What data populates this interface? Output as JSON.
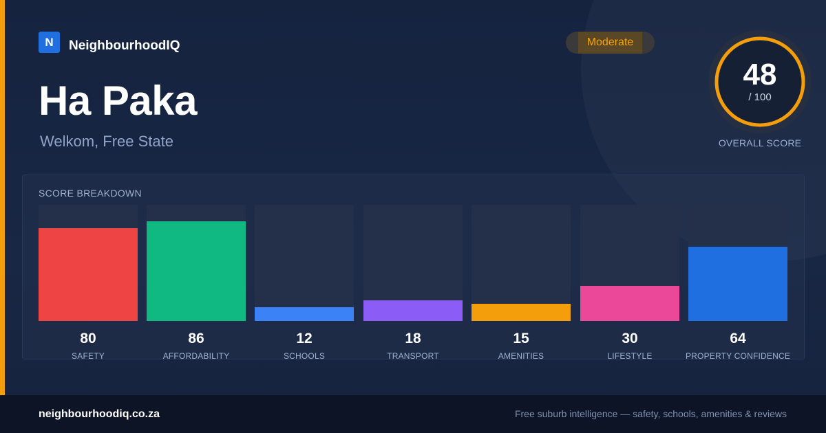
{
  "brand": {
    "logo_letter": "N",
    "name": "NeighbourhoodIQ",
    "logo_color": "#1f6fe0"
  },
  "suburb": "Ha Paka",
  "location": "Welkom, Free State",
  "badge": {
    "label": "Moderate",
    "color": "#f5a40c"
  },
  "score": {
    "value": "48",
    "max": "/ 100",
    "caption": "OVERALL SCORE",
    "fraction": 0.48,
    "ring_color": "#f59e0b"
  },
  "breakdown": {
    "title": "SCORE BREAKDOWN",
    "items": [
      {
        "label": "SAFETY",
        "value": "80",
        "color": "#ef4444"
      },
      {
        "label": "AFFORDABILITY",
        "value": "86",
        "color": "#10b981"
      },
      {
        "label": "SCHOOLS",
        "value": "12",
        "color": "#3b82f6"
      },
      {
        "label": "TRANSPORT",
        "value": "18",
        "color": "#8b5cf6"
      },
      {
        "label": "AMENITIES",
        "value": "15",
        "color": "#f59e0b"
      },
      {
        "label": "LIFESTYLE",
        "value": "30",
        "color": "#ec4899"
      },
      {
        "label": "PROPERTY CONFIDENCE",
        "value": "64",
        "color": "#1f6fe0"
      }
    ]
  },
  "footer": {
    "url": "neighbourhoodiq.co.za",
    "tagline": "Free suburb intelligence — safety, schools, amenities & reviews"
  }
}
